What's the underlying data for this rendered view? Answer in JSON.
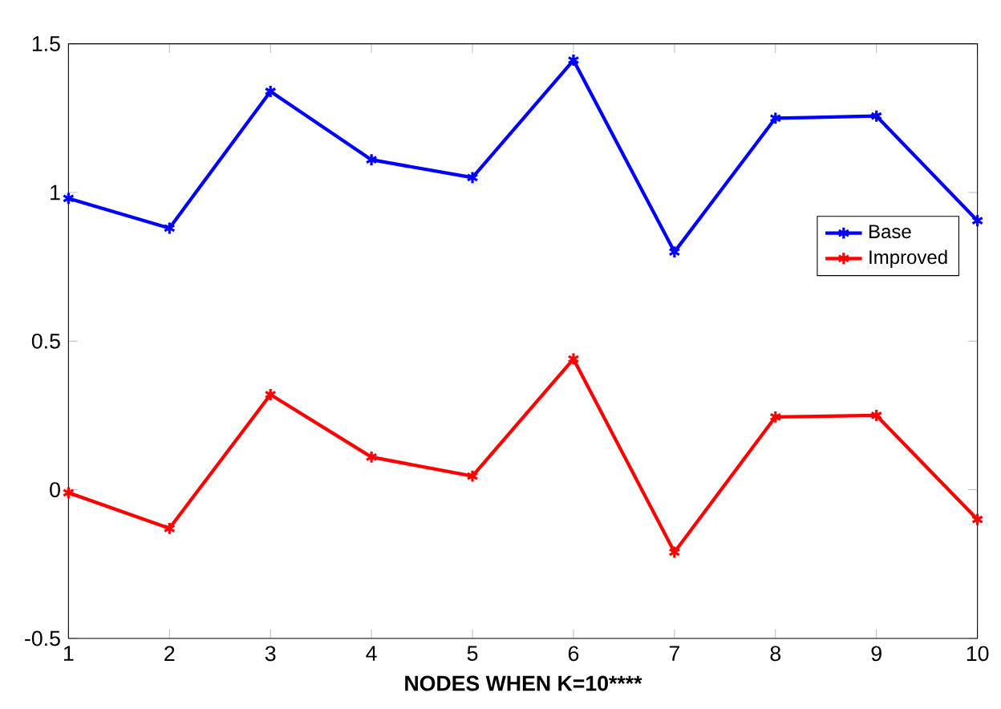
{
  "chart_data": {
    "type": "line",
    "xlabel": "NODES WHEN K=10****",
    "x": [
      1,
      2,
      3,
      4,
      5,
      6,
      7,
      8,
      9,
      10
    ],
    "series": [
      {
        "name": "Base",
        "color": "#0000ff",
        "values": [
          0.98,
          0.88,
          1.34,
          1.11,
          1.05,
          1.445,
          0.8,
          1.25,
          1.257,
          0.905
        ]
      },
      {
        "name": "Improved",
        "color": "#ff0000",
        "values": [
          -0.01,
          -0.13,
          0.32,
          0.11,
          0.046,
          0.44,
          -0.21,
          0.245,
          0.25,
          -0.1
        ]
      }
    ],
    "xlim": [
      1,
      10
    ],
    "xticks": [
      1,
      2,
      3,
      4,
      5,
      6,
      7,
      8,
      9,
      10
    ],
    "ylim": [
      -0.5,
      1.5
    ],
    "yticks": [
      -0.5,
      0,
      0.5,
      1,
      1.5
    ],
    "legend": "right",
    "marker": "cross",
    "line_style": "solid",
    "grid": false
  }
}
